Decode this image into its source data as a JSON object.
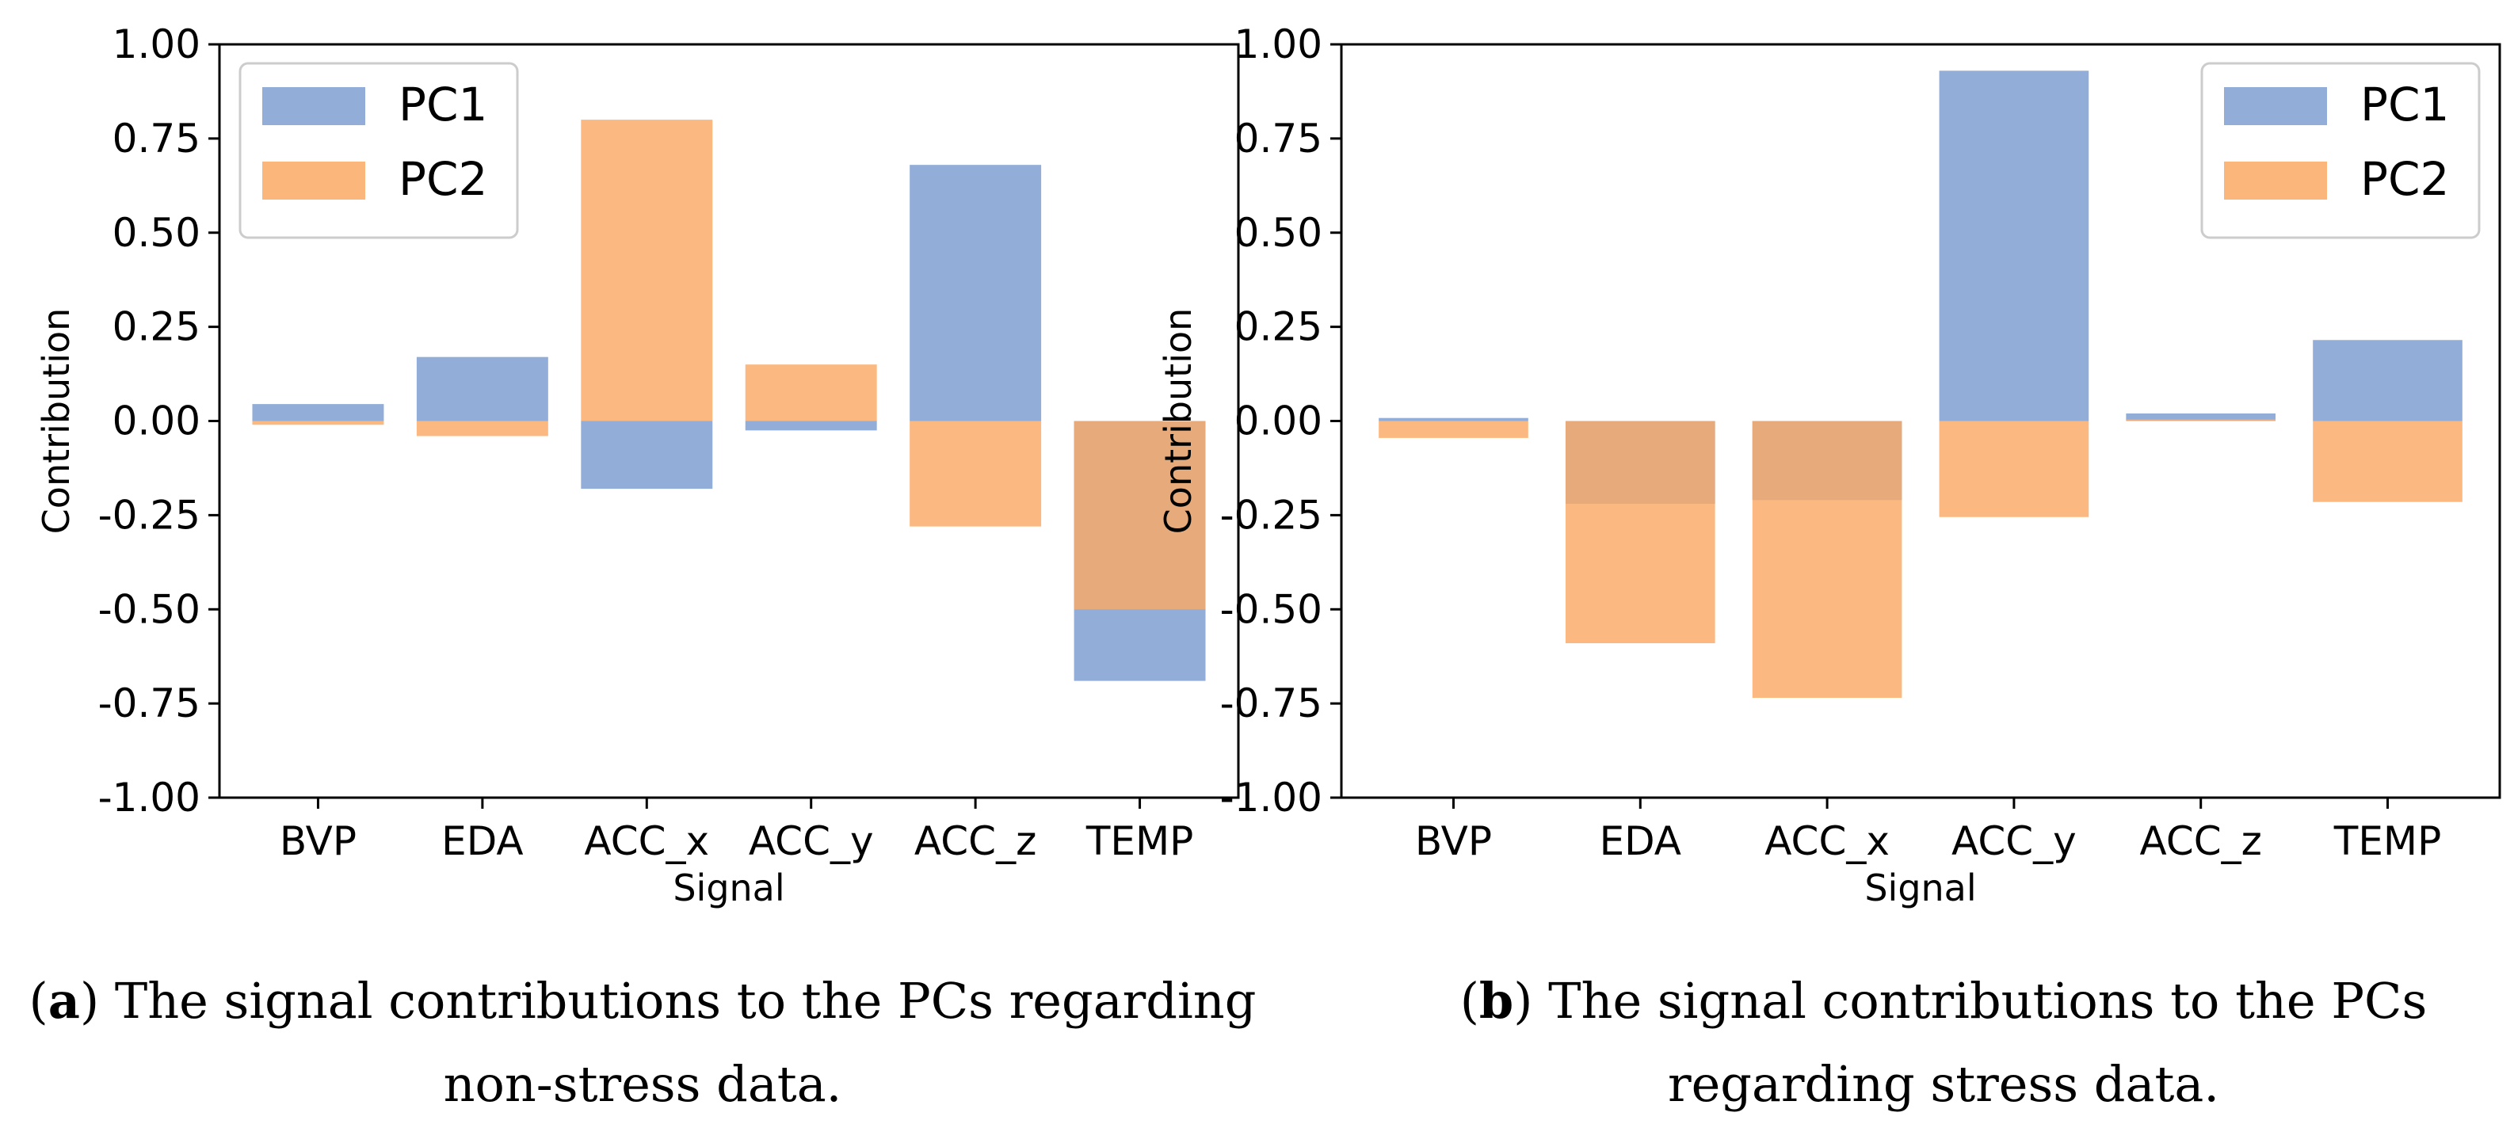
{
  "colors": {
    "pc1": "#7f9fd1",
    "pc2": "#faa965",
    "overlap": "#cb9779",
    "axis": "#000000",
    "legend_border": "#cccccc"
  },
  "chart_data": [
    {
      "type": "bar",
      "panel": "a",
      "categories": [
        "BVP",
        "EDA",
        "ACC_x",
        "ACC_y",
        "ACC_z",
        "TEMP"
      ],
      "series": [
        {
          "name": "PC1",
          "values": [
            0.045,
            0.17,
            -0.18,
            -0.025,
            0.68,
            -0.69
          ]
        },
        {
          "name": "PC2",
          "values": [
            -0.01,
            -0.04,
            0.8,
            0.15,
            -0.28,
            -0.5
          ]
        }
      ],
      "xlabel": "Signal",
      "ylabel": "Contribution",
      "ylim": [
        -1.0,
        1.0
      ],
      "yticks": [
        "1.00",
        "0.75",
        "0.50",
        "0.25",
        "0.00",
        "-0.25",
        "-0.50",
        "-0.75",
        "-1.00"
      ],
      "legend": {
        "position": "top-left",
        "entries": [
          "PC1",
          "PC2"
        ]
      },
      "caption": {
        "label": "a",
        "line1": ") The signal contributions to the PCs regarding",
        "line2": "non-stress data."
      }
    },
    {
      "type": "bar",
      "panel": "b",
      "categories": [
        "BVP",
        "EDA",
        "ACC_x",
        "ACC_y",
        "ACC_z",
        "TEMP"
      ],
      "series": [
        {
          "name": "PC1",
          "values": [
            0.008,
            -0.22,
            -0.21,
            0.93,
            0.02,
            0.215
          ]
        },
        {
          "name": "PC2",
          "values": [
            -0.045,
            -0.59,
            -0.735,
            -0.255,
            0.005,
            -0.215
          ]
        }
      ],
      "xlabel": "Signal",
      "ylabel": "Contribution",
      "ylim": [
        -1.0,
        1.0
      ],
      "yticks": [
        "1.00",
        "0.75",
        "0.50",
        "0.25",
        "0.00",
        "-0.25",
        "-0.50",
        "-0.75",
        "-1.00"
      ],
      "legend": {
        "position": "top-right",
        "entries": [
          "PC1",
          "PC2"
        ]
      },
      "caption": {
        "label": "b",
        "line1": ") The signal contributions to the PCs",
        "line2": "regarding stress data."
      }
    }
  ]
}
